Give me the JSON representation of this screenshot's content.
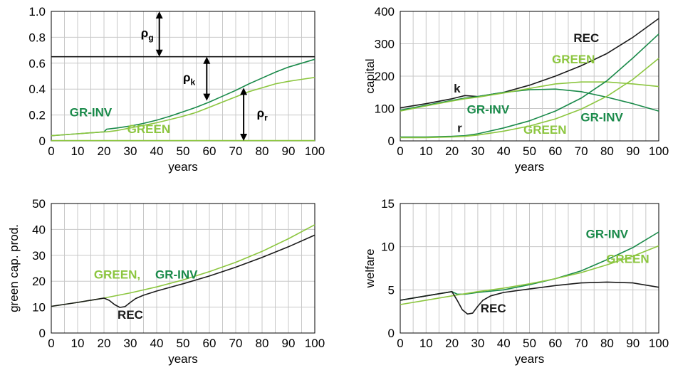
{
  "colors": {
    "rec": "#1a1a1a",
    "gr_inv": "#1a8a4a",
    "green": "#8cc63f",
    "grid": "#c8c8c8",
    "arrow": "#000000"
  },
  "chart_data": [
    {
      "type": "line",
      "xlabel": "years",
      "ylabel": "",
      "xlim": [
        0,
        100
      ],
      "ylim": [
        0,
        1.0
      ],
      "xticks": [
        "0",
        "10",
        "20",
        "30",
        "40",
        "50",
        "60",
        "70",
        "80",
        "90",
        "100"
      ],
      "yticks": [
        "0",
        "0.2",
        "0.4",
        "0.6",
        "0.8",
        "1.0"
      ],
      "grid": true,
      "series": [
        {
          "name": "",
          "color": "rec",
          "x": [
            0,
            100
          ],
          "y": [
            0.65,
            0.65
          ]
        },
        {
          "name": "GR-INV",
          "color": "gr_inv",
          "x": [
            0,
            10,
            20,
            21,
            25,
            30,
            35,
            40,
            45,
            50,
            55,
            60,
            65,
            70,
            75,
            80,
            85,
            90,
            95,
            100
          ],
          "y": [
            0.04,
            0.055,
            0.07,
            0.09,
            0.1,
            0.115,
            0.135,
            0.16,
            0.19,
            0.225,
            0.26,
            0.3,
            0.345,
            0.39,
            0.44,
            0.485,
            0.53,
            0.57,
            0.6,
            0.63
          ]
        },
        {
          "name": "GREEN",
          "color": "green",
          "x": [
            0,
            10,
            20,
            21,
            25,
            30,
            35,
            40,
            45,
            50,
            55,
            60,
            65,
            70,
            75,
            80,
            85,
            90,
            95,
            100
          ],
          "y": [
            0.04,
            0.055,
            0.07,
            0.07,
            0.08,
            0.1,
            0.12,
            0.14,
            0.165,
            0.19,
            0.22,
            0.26,
            0.3,
            0.34,
            0.38,
            0.41,
            0.44,
            0.46,
            0.475,
            0.49
          ]
        },
        {
          "name": "",
          "color": "green",
          "x": [
            0,
            100
          ],
          "y": [
            0.002,
            0.002
          ]
        }
      ],
      "annotations": [
        {
          "label": "GR-INV",
          "color": "gr_inv",
          "x": 15,
          "y": 0.19
        },
        {
          "label": "GREEN",
          "color": "green",
          "x": 37,
          "y": 0.06
        }
      ],
      "arrows": [
        {
          "label": "ρ",
          "sub": "g",
          "x": 41,
          "y0": 1.0,
          "y1": 0.65,
          "lx": 34
        },
        {
          "label": "ρ",
          "sub": "k",
          "x": 59,
          "y0": 0.65,
          "y1": 0.31,
          "lx": 50
        },
        {
          "label": "ρ",
          "sub": "r",
          "x": 73,
          "y0": 0.41,
          "y1": 0.0,
          "lx": 78
        }
      ]
    },
    {
      "type": "line",
      "xlabel": "years",
      "ylabel": "capital",
      "xlim": [
        0,
        100
      ],
      "ylim": [
        0,
        400
      ],
      "xticks": [
        "0",
        "10",
        "20",
        "30",
        "40",
        "50",
        "60",
        "70",
        "80",
        "90",
        "100"
      ],
      "yticks": [
        "0",
        "100",
        "200",
        "300",
        "400"
      ],
      "grid": true,
      "series": [
        {
          "name": "REC",
          "color": "rec",
          "x": [
            0,
            10,
            20,
            25,
            30,
            40,
            50,
            60,
            70,
            80,
            90,
            100
          ],
          "y": [
            102,
            115,
            130,
            140,
            137,
            150,
            172,
            200,
            232,
            270,
            320,
            378
          ]
        },
        {
          "name": "GR-INV",
          "color": "gr_inv",
          "x": [
            0,
            10,
            20,
            25,
            30,
            40,
            50,
            60,
            70,
            80,
            90,
            100
          ],
          "y": [
            95,
            110,
            125,
            132,
            137,
            150,
            158,
            160,
            152,
            135,
            115,
            92
          ]
        },
        {
          "name": "GREEN",
          "color": "green",
          "x": [
            0,
            10,
            20,
            25,
            30,
            40,
            50,
            60,
            70,
            80,
            90,
            100
          ],
          "y": [
            92,
            108,
            123,
            130,
            135,
            148,
            162,
            176,
            182,
            182,
            176,
            168
          ]
        },
        {
          "name": "GR-INV",
          "color": "gr_inv",
          "x": [
            0,
            10,
            20,
            25,
            30,
            40,
            50,
            60,
            70,
            80,
            90,
            100
          ],
          "y": [
            12,
            12,
            14,
            16,
            22,
            40,
            62,
            92,
            132,
            186,
            256,
            330
          ]
        },
        {
          "name": "GREEN",
          "color": "green",
          "x": [
            0,
            10,
            20,
            25,
            30,
            40,
            50,
            60,
            70,
            80,
            90,
            100
          ],
          "y": [
            10,
            10,
            12,
            14,
            18,
            30,
            46,
            68,
            98,
            138,
            190,
            255
          ]
        }
      ],
      "annotations": [
        {
          "label": "REC",
          "color": "rec",
          "x": 72,
          "y": 305
        },
        {
          "label": "GREEN",
          "color": "green",
          "x": 67,
          "y": 240
        },
        {
          "label": "k",
          "color": "rec",
          "x": 22,
          "y": 150
        },
        {
          "label": "r",
          "color": "rec",
          "x": 23,
          "y": 27
        },
        {
          "label": "GR-INV",
          "color": "gr_inv",
          "x": 34,
          "y": 85
        },
        {
          "label": "GR-INV",
          "color": "gr_inv",
          "x": 78,
          "y": 60
        },
        {
          "label": "GREEN",
          "color": "green",
          "x": 56,
          "y": 22
        }
      ],
      "arrows": []
    },
    {
      "type": "line",
      "xlabel": "years",
      "ylabel": "green cap. prod.",
      "xlim": [
        0,
        100
      ],
      "ylim": [
        0,
        50
      ],
      "xticks": [
        "0",
        "10",
        "20",
        "30",
        "40",
        "50",
        "60",
        "70",
        "80",
        "90",
        "100"
      ],
      "yticks": [
        "0",
        "10",
        "20",
        "30",
        "40",
        "50"
      ],
      "grid": true,
      "series": [
        {
          "name": "GREEN, GR-INV",
          "color": "green",
          "x": [
            0,
            10,
            20,
            30,
            40,
            50,
            60,
            70,
            80,
            90,
            100
          ],
          "y": [
            10.3,
            11.8,
            13.5,
            15.5,
            17.8,
            20.5,
            23.7,
            27.3,
            31.5,
            36.4,
            41.8
          ]
        },
        {
          "name": "REC",
          "color": "rec",
          "x": [
            0,
            10,
            20,
            22,
            24,
            26,
            28,
            30,
            32,
            35,
            40,
            50,
            60,
            70,
            80,
            90,
            100
          ],
          "y": [
            10.3,
            11.8,
            13.5,
            12.6,
            11.0,
            9.9,
            10.2,
            11.8,
            13.3,
            14.6,
            16.2,
            19.0,
            22.0,
            25.4,
            29.2,
            33.3,
            37.8
          ]
        }
      ],
      "annotations": [
        {
          "label": "GREEN,",
          "color": "green",
          "x": 25,
          "y": 21
        },
        {
          "label": "GR-INV",
          "color": "gr_inv",
          "x": 47.5,
          "y": 21
        },
        {
          "label": "REC",
          "color": "rec",
          "x": 30,
          "y": 5.5
        }
      ],
      "arrows": []
    },
    {
      "type": "line",
      "xlabel": "years",
      "ylabel": "welfare",
      "xlim": [
        0,
        100
      ],
      "ylim": [
        0,
        15
      ],
      "xticks": [
        "0",
        "10",
        "20",
        "30",
        "40",
        "50",
        "60",
        "70",
        "80",
        "90",
        "100"
      ],
      "yticks": [
        "0",
        "5",
        "10",
        "15"
      ],
      "grid": true,
      "series": [
        {
          "name": "GR-INV",
          "color": "gr_inv",
          "x": [
            0,
            10,
            20,
            22,
            25,
            30,
            40,
            50,
            60,
            70,
            80,
            90,
            100
          ],
          "y": [
            3.8,
            4.3,
            4.8,
            4.5,
            4.5,
            4.7,
            5.0,
            5.6,
            6.3,
            7.2,
            8.5,
            9.9,
            11.7
          ]
        },
        {
          "name": "GREEN",
          "color": "green",
          "x": [
            0,
            10,
            20,
            30,
            40,
            50,
            60,
            70,
            80,
            90,
            100
          ],
          "y": [
            3.3,
            3.8,
            4.3,
            4.8,
            5.2,
            5.7,
            6.3,
            7.0,
            7.9,
            8.9,
            10.1
          ]
        },
        {
          "name": "REC",
          "color": "rec",
          "x": [
            0,
            10,
            20,
            22,
            24,
            26,
            28,
            30,
            32,
            35,
            40,
            50,
            60,
            70,
            80,
            90,
            100
          ],
          "y": [
            3.8,
            4.3,
            4.8,
            3.8,
            2.7,
            2.2,
            2.3,
            3.1,
            3.8,
            4.3,
            4.7,
            5.1,
            5.5,
            5.8,
            5.9,
            5.8,
            5.3
          ]
        }
      ],
      "annotations": [
        {
          "label": "GR-INV",
          "color": "gr_inv",
          "x": 80,
          "y": 11.0
        },
        {
          "label": "GREEN",
          "color": "green",
          "x": 88,
          "y": 8.1
        },
        {
          "label": "REC",
          "color": "rec",
          "x": 36,
          "y": 2.4
        }
      ],
      "arrows": []
    }
  ]
}
